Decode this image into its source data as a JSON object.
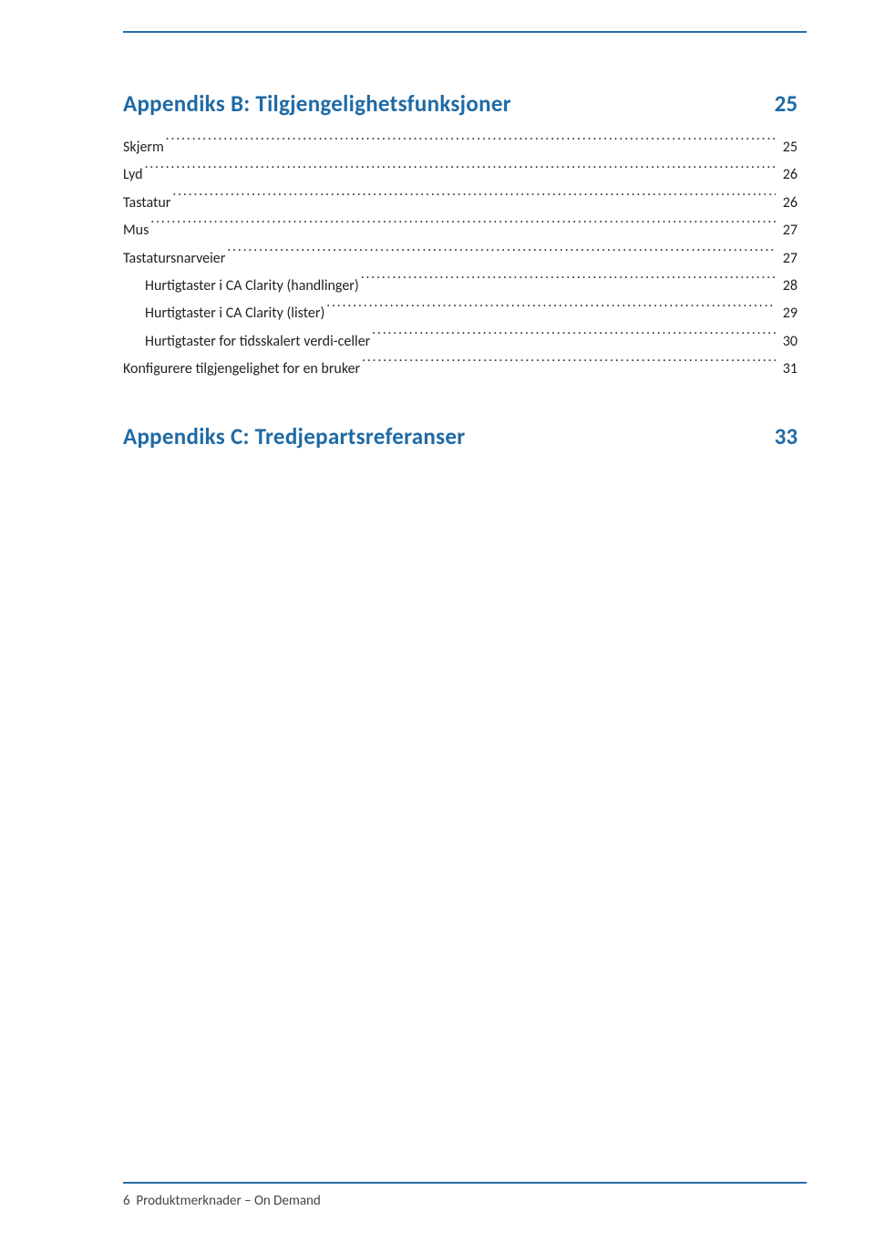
{
  "colors": {
    "accent": "#1f6aa5",
    "rule": "#2b6ca3",
    "text": "#222222",
    "footer_text": "#444444",
    "background": "#ffffff"
  },
  "typography": {
    "section_title_fontsize": 25,
    "entry_fontsize": 16,
    "footer_fontsize": 15
  },
  "sections": [
    {
      "title": "Appendiks B: Tilgjengelighetsfunksjoner",
      "page": "25",
      "entries": [
        {
          "label": "Skjerm",
          "page": "25",
          "indent": 0
        },
        {
          "label": "Lyd",
          "page": "26",
          "indent": 0
        },
        {
          "label": "Tastatur",
          "page": "26",
          "indent": 0
        },
        {
          "label": "Mus",
          "page": "27",
          "indent": 0
        },
        {
          "label": "Tastatursnarveier",
          "page": "27",
          "indent": 0
        },
        {
          "label": "Hurtigtaster i CA Clarity (handlinger)",
          "page": "28",
          "indent": 1
        },
        {
          "label": "Hurtigtaster i CA Clarity (lister)",
          "page": "29",
          "indent": 1
        },
        {
          "label": "Hurtigtaster for tidsskalert verdi-celler",
          "page": "30",
          "indent": 1
        },
        {
          "label": "Konfigurere tilgjengelighet for en bruker",
          "page": "31",
          "indent": 0
        }
      ]
    },
    {
      "title": "Appendiks C: Tredjepartsreferanser",
      "page": "33",
      "entries": []
    }
  ],
  "footer": {
    "page_number": "6",
    "doc_title": "Produktmerknader – On Demand"
  }
}
